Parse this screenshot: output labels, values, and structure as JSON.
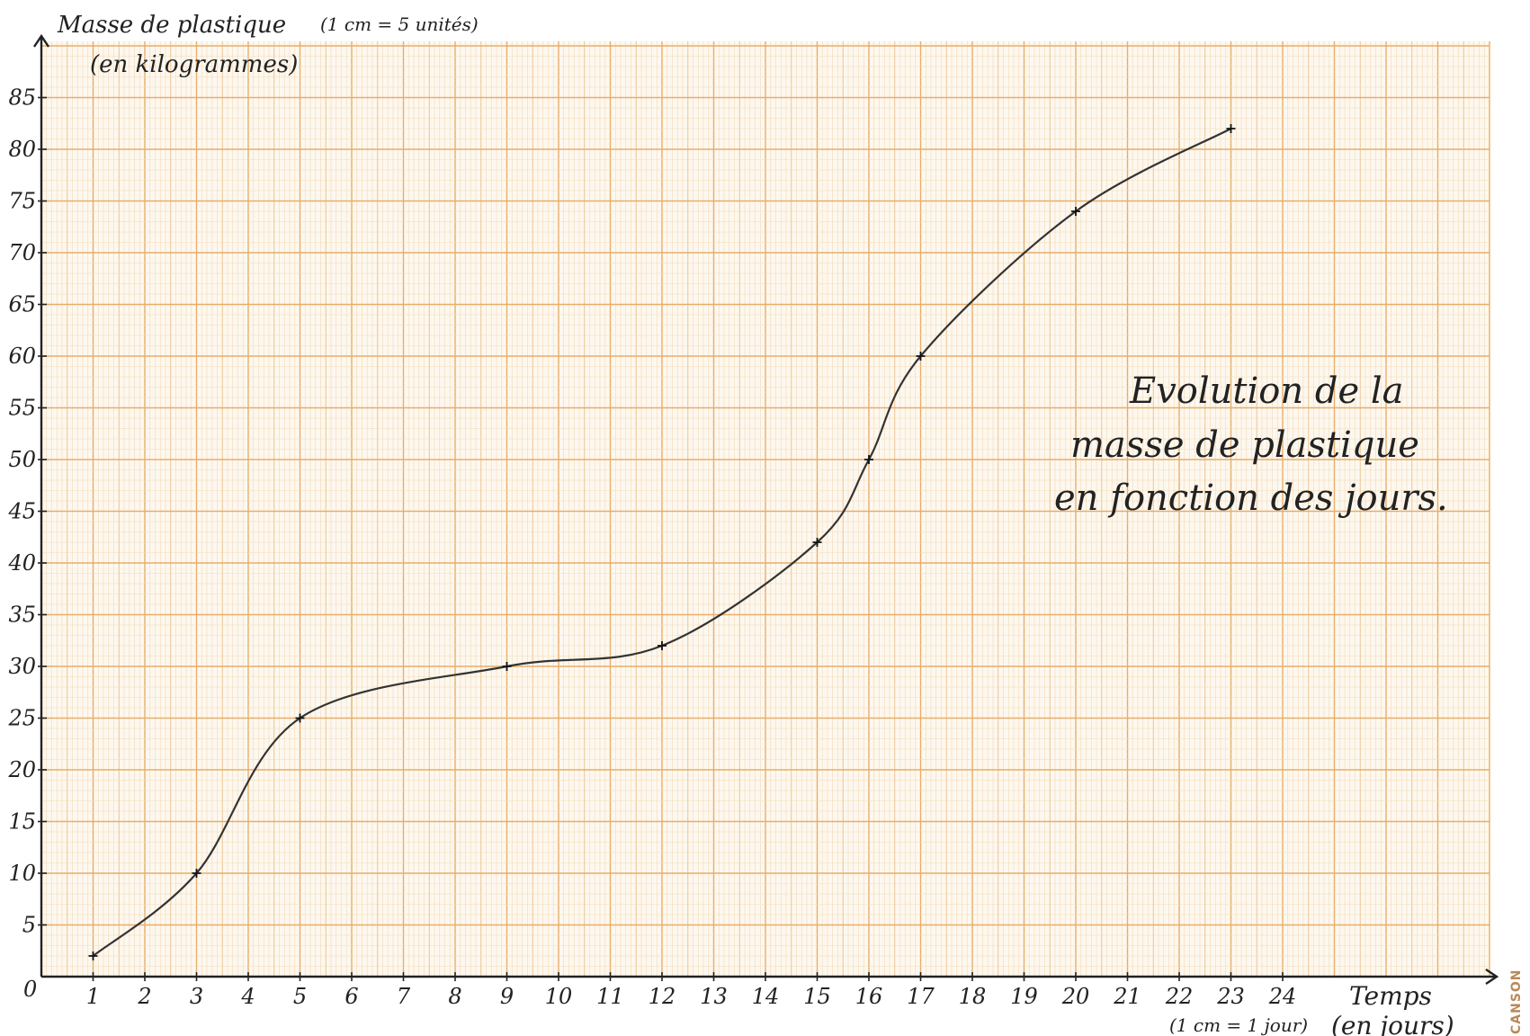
{
  "chart_data": {
    "type": "line",
    "title_lines": [
      "Evolution de la",
      "masse de plastique",
      "en fonction des jours."
    ],
    "ylabel_lines": [
      "Masse de plastique",
      "(en kilogrammes)"
    ],
    "yscale_note": "(1 cm = 5 unités)",
    "xlabel_lines": [
      "Temps",
      "(en jours)"
    ],
    "xscale_note": "(1 cm = 1 jour)",
    "origin_label": "0",
    "xlim": [
      0,
      27
    ],
    "ylim": [
      0,
      88
    ],
    "xticks": [
      "1",
      "2",
      "3",
      "4",
      "5",
      "6",
      "7",
      "8",
      "9",
      "10",
      "11",
      "12",
      "13",
      "14",
      "15",
      "16",
      "17",
      "18",
      "19",
      "20",
      "21",
      "22",
      "23",
      "24"
    ],
    "yticks": [
      "5",
      "10",
      "15",
      "20",
      "25",
      "30",
      "35",
      "40",
      "45",
      "50",
      "55",
      "60",
      "65",
      "70",
      "75",
      "80",
      "85"
    ],
    "grid": true,
    "legend": "none",
    "series": [
      {
        "x": [
          1,
          3,
          5,
          9,
          12,
          15,
          16,
          17,
          20,
          23
        ],
        "y": [
          2,
          10,
          25,
          30,
          32,
          42,
          50,
          60,
          74,
          82
        ],
        "color": "#333333"
      }
    ]
  },
  "colors": {
    "grid_minor": "#f3d9b6",
    "grid_major": "#e8ad6a",
    "axis": "#222222",
    "curve": "#333333",
    "paper": "#fdf8ef"
  },
  "brand": "CANSON"
}
